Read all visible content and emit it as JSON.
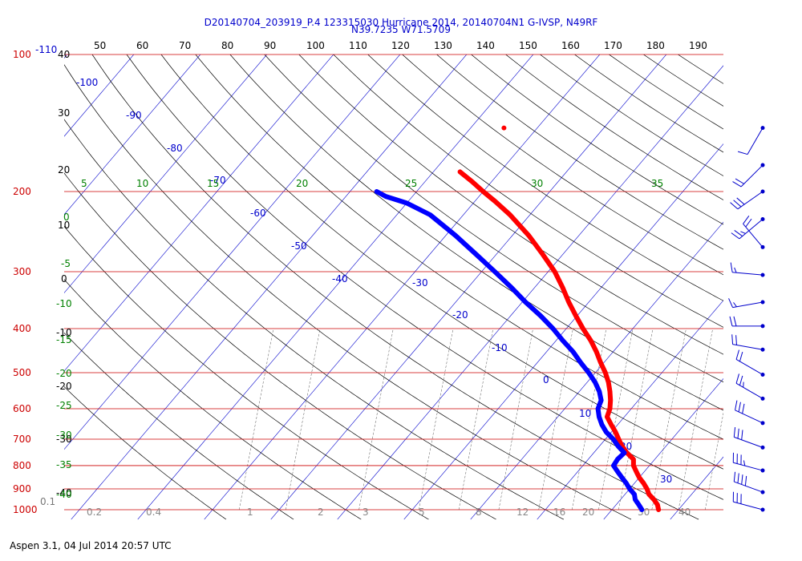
{
  "header": {
    "title_line1": "D20140704_203919_P.4 123315030 Hurricane 2014, 20140704N1 G-IVSP, N49RF",
    "title_line2": "N39.7235 W71.5709"
  },
  "footer": {
    "text": "Aspen 3.1, 04 Jul 2014  20:57 UTC"
  },
  "colors": {
    "isobar": "#cc0000",
    "isotherm": "#0000cc",
    "dry_adiabat": "#000000",
    "moist_adiabat": "#008000",
    "mixing_ratio": "#555555",
    "temperature": "#ff0000",
    "dewpoint": "#0000ff",
    "wind": "#0000cc"
  },
  "chart_data": {
    "type": "line",
    "subtype": "skew-T log-P diagram",
    "y_axis": {
      "scale": "log",
      "range": [
        1000,
        100
      ],
      "pressure_ticks": [
        100,
        200,
        300,
        400,
        500,
        600,
        700,
        800,
        900,
        1000
      ]
    },
    "x_axis": {
      "top_ticks": [
        50,
        60,
        70,
        80,
        90,
        100,
        110,
        120,
        130,
        140,
        150,
        160,
        170,
        180,
        190
      ]
    },
    "left_labels": [
      "-110",
      "40",
      "30",
      "20",
      "10",
      "0",
      "-10",
      "-20",
      "-30",
      "-40",
      "0.1"
    ],
    "isotherm_labels": [
      "-100",
      "-90",
      "-80",
      "-70",
      "-60",
      "-50",
      "-40",
      "-30",
      "-20",
      "-10",
      "0",
      "10",
      "20",
      "30"
    ],
    "moist_adiabat_labels": [
      "5",
      "10",
      "15",
      "20",
      "25",
      "30",
      "35"
    ],
    "moist_left_labels": [
      "0",
      "-5",
      "-10",
      "-15",
      "-20",
      "-25",
      "-30",
      "-35",
      "-40"
    ],
    "mixing_ratio_labels": [
      "0.2",
      "0.4",
      "1",
      "2",
      "3",
      "5",
      "8",
      "12",
      "16",
      "20",
      "30",
      "40"
    ],
    "series": [
      {
        "name": "",
        "kind": "temperature",
        "points": [
          [
            1000,
            27.0
          ],
          [
            975,
            26.2
          ],
          [
            950,
            25.0
          ],
          [
            925,
            23.6
          ],
          [
            900,
            22.6
          ],
          [
            875,
            21.4
          ],
          [
            850,
            20.0
          ],
          [
            825,
            18.8
          ],
          [
            800,
            17.6
          ],
          [
            775,
            16.8
          ],
          [
            750,
            15.0
          ],
          [
            725,
            13.4
          ],
          [
            700,
            12.0
          ],
          [
            675,
            10.6
          ],
          [
            650,
            9.0
          ],
          [
            625,
            7.4
          ],
          [
            600,
            6.8
          ],
          [
            575,
            5.8
          ],
          [
            550,
            4.6
          ],
          [
            525,
            3.2
          ],
          [
            500,
            1.5
          ],
          [
            475,
            -0.5
          ],
          [
            450,
            -2.5
          ],
          [
            425,
            -4.8
          ],
          [
            400,
            -7.5
          ],
          [
            375,
            -10.2
          ],
          [
            350,
            -13.0
          ],
          [
            325,
            -15.8
          ],
          [
            300,
            -19.0
          ],
          [
            275,
            -23.0
          ],
          [
            250,
            -27.5
          ],
          [
            225,
            -33.0
          ],
          [
            210,
            -37.0
          ],
          [
            200,
            -40.0
          ],
          [
            190,
            -43.0
          ],
          [
            181,
            -46.0
          ]
        ]
      },
      {
        "name": "",
        "kind": "dewpoint",
        "points": [
          [
            1000,
            24.5
          ],
          [
            975,
            23.4
          ],
          [
            950,
            22.2
          ],
          [
            925,
            21.4
          ],
          [
            900,
            20.0
          ],
          [
            875,
            18.8
          ],
          [
            850,
            17.4
          ],
          [
            825,
            16.0
          ],
          [
            800,
            14.6
          ],
          [
            775,
            14.4
          ],
          [
            750,
            14.6
          ],
          [
            725,
            12.8
          ],
          [
            700,
            11.2
          ],
          [
            675,
            9.2
          ],
          [
            650,
            7.6
          ],
          [
            625,
            6.2
          ],
          [
            600,
            5.0
          ],
          [
            575,
            4.4
          ],
          [
            550,
            3.0
          ],
          [
            525,
            1.2
          ],
          [
            500,
            -1.0
          ],
          [
            475,
            -3.5
          ],
          [
            450,
            -6.0
          ],
          [
            425,
            -9.0
          ],
          [
            400,
            -12.0
          ],
          [
            375,
            -15.5
          ],
          [
            350,
            -19.5
          ],
          [
            325,
            -23.5
          ],
          [
            300,
            -28.0
          ],
          [
            275,
            -33.0
          ],
          [
            250,
            -38.5
          ],
          [
            240,
            -41.0
          ],
          [
            225,
            -45.0
          ],
          [
            212,
            -50.0
          ],
          [
            205,
            -54.0
          ],
          [
            200,
            -56.0
          ]
        ]
      },
      {
        "name": "",
        "kind": "isolated_temperature_point",
        "points": [
          [
            145,
            -45.0
          ]
        ]
      }
    ],
    "wind_barbs": [
      {
        "pressure": 145,
        "speed_kt": 10,
        "dir_deg": 210
      },
      {
        "pressure": 175,
        "speed_kt": 20,
        "dir_deg": 225
      },
      {
        "pressure": 200,
        "speed_kt": 30,
        "dir_deg": 235
      },
      {
        "pressure": 230,
        "speed_kt": 25,
        "dir_deg": 230
      },
      {
        "pressure": 265,
        "speed_kt": 20,
        "dir_deg": 320
      },
      {
        "pressure": 305,
        "speed_kt": 15,
        "dir_deg": 275
      },
      {
        "pressure": 350,
        "speed_kt": 15,
        "dir_deg": 260
      },
      {
        "pressure": 395,
        "speed_kt": 20,
        "dir_deg": 270
      },
      {
        "pressure": 445,
        "speed_kt": 20,
        "dir_deg": 280
      },
      {
        "pressure": 505,
        "speed_kt": 20,
        "dir_deg": 300
      },
      {
        "pressure": 570,
        "speed_kt": 25,
        "dir_deg": 300
      },
      {
        "pressure": 645,
        "speed_kt": 30,
        "dir_deg": 295
      },
      {
        "pressure": 730,
        "speed_kt": 30,
        "dir_deg": 290
      },
      {
        "pressure": 820,
        "speed_kt": 35,
        "dir_deg": 285
      },
      {
        "pressure": 915,
        "speed_kt": 40,
        "dir_deg": 290
      },
      {
        "pressure": 1000,
        "speed_kt": 30,
        "dir_deg": 285
      }
    ]
  }
}
